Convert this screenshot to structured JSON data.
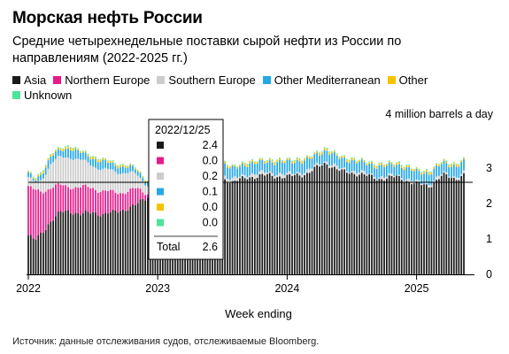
{
  "header": {
    "title": "Морская нефть России",
    "subtitle": "Средние четырехнедельные поставки сырой нефти из России по направлениям (2022-2025 гг.)"
  },
  "footer": {
    "source": "Источник: данные отслеживания судов, отслеживаемые Bloomberg."
  },
  "colors": {
    "Asia": "#1a1a1a",
    "Northern Europe": "#e8198b",
    "Southern Europe": "#cccccc",
    "Other Mediterranean": "#25a7e8",
    "Other": "#f5c400",
    "Unknown": "#4ee39a"
  },
  "tooltip": {
    "date": "2022/12/25",
    "rows": [
      {
        "series": "Asia",
        "value": "2.4"
      },
      {
        "series": "Northern Europe",
        "value": "0.0"
      },
      {
        "series": "Southern Europe",
        "value": "0.2"
      },
      {
        "series": "Other Mediterranean",
        "value": "0.1"
      },
      {
        "series": "Other",
        "value": "0.0"
      },
      {
        "series": "Unknown",
        "value": "0.0"
      }
    ],
    "total_label": "Total",
    "total_value": "2.6"
  },
  "chart_data": {
    "type": "bar",
    "stacked": true,
    "title": "Морская нефть России",
    "xlabel": "Week ending",
    "ylabel": "4 million barrels a day",
    "ylim": [
      0,
      4
    ],
    "yticks": [
      0,
      1,
      2,
      3
    ],
    "xticks": [
      "2022",
      "2023",
      "2024",
      "2025"
    ],
    "xlim": [
      2022.0,
      2025.42
    ],
    "grid": false,
    "legend_position": "top-left",
    "series_names": [
      "Asia",
      "Northern Europe",
      "Southern Europe",
      "Other Mediterranean",
      "Other",
      "Unknown"
    ],
    "anchors": [
      {
        "t": 2022.0,
        "v": [
          1.1,
          1.35,
          0.25,
          0.12,
          0.04,
          0.02
        ]
      },
      {
        "t": 2022.05,
        "v": [
          0.95,
          1.4,
          0.2,
          0.1,
          0.04,
          0.02
        ]
      },
      {
        "t": 2022.1,
        "v": [
          1.15,
          1.2,
          0.35,
          0.15,
          0.05,
          0.02
        ]
      },
      {
        "t": 2022.17,
        "v": [
          1.5,
          0.95,
          0.65,
          0.2,
          0.05,
          0.02
        ]
      },
      {
        "t": 2022.25,
        "v": [
          1.75,
          0.75,
          0.8,
          0.2,
          0.05,
          0.02
        ]
      },
      {
        "t": 2022.32,
        "v": [
          1.8,
          0.7,
          0.85,
          0.25,
          0.05,
          0.03
        ]
      },
      {
        "t": 2022.4,
        "v": [
          1.7,
          0.75,
          0.75,
          0.22,
          0.04,
          0.02
        ]
      },
      {
        "t": 2022.5,
        "v": [
          1.75,
          0.7,
          0.65,
          0.2,
          0.05,
          0.02
        ]
      },
      {
        "t": 2022.58,
        "v": [
          1.7,
          0.65,
          0.6,
          0.22,
          0.05,
          0.02
        ]
      },
      {
        "t": 2022.66,
        "v": [
          1.75,
          0.55,
          0.6,
          0.2,
          0.05,
          0.02
        ]
      },
      {
        "t": 2022.75,
        "v": [
          1.85,
          0.5,
          0.55,
          0.15,
          0.04,
          0.02
        ]
      },
      {
        "t": 2022.83,
        "v": [
          1.95,
          0.45,
          0.4,
          0.15,
          0.04,
          0.02
        ]
      },
      {
        "t": 2022.92,
        "v": [
          2.2,
          0.1,
          0.25,
          0.1,
          0.02,
          0.01
        ]
      },
      {
        "t": 2022.98,
        "v": [
          2.4,
          0.0,
          0.2,
          0.1,
          0.0,
          0.0
        ]
      },
      {
        "t": 2023.05,
        "v": [
          2.7,
          0.0,
          0.2,
          0.15,
          0.02,
          0.01
        ]
      },
      {
        "t": 2023.15,
        "v": [
          2.9,
          0.0,
          0.15,
          0.25,
          0.03,
          0.01
        ]
      },
      {
        "t": 2023.3,
        "v": [
          2.95,
          0.0,
          0.1,
          0.3,
          0.05,
          0.02
        ]
      },
      {
        "t": 2023.45,
        "v": [
          2.8,
          0.0,
          0.1,
          0.35,
          0.05,
          0.02
        ]
      },
      {
        "t": 2023.58,
        "v": [
          2.6,
          0.0,
          0.08,
          0.3,
          0.04,
          0.02
        ]
      },
      {
        "t": 2023.7,
        "v": [
          2.75,
          0.0,
          0.08,
          0.3,
          0.05,
          0.02
        ]
      },
      {
        "t": 2023.85,
        "v": [
          2.8,
          0.0,
          0.08,
          0.3,
          0.05,
          0.02
        ]
      },
      {
        "t": 2024.0,
        "v": [
          2.75,
          0.0,
          0.07,
          0.35,
          0.05,
          0.02
        ]
      },
      {
        "t": 2024.15,
        "v": [
          2.85,
          0.0,
          0.07,
          0.3,
          0.05,
          0.02
        ]
      },
      {
        "t": 2024.3,
        "v": [
          3.15,
          0.0,
          0.06,
          0.3,
          0.05,
          0.02
        ]
      },
      {
        "t": 2024.42,
        "v": [
          2.9,
          0.0,
          0.06,
          0.3,
          0.05,
          0.02
        ]
      },
      {
        "t": 2024.55,
        "v": [
          2.85,
          0.0,
          0.06,
          0.28,
          0.04,
          0.02
        ]
      },
      {
        "t": 2024.7,
        "v": [
          2.7,
          0.0,
          0.05,
          0.3,
          0.05,
          0.02
        ]
      },
      {
        "t": 2024.85,
        "v": [
          2.75,
          0.0,
          0.05,
          0.3,
          0.05,
          0.02
        ]
      },
      {
        "t": 2025.0,
        "v": [
          2.55,
          0.0,
          0.05,
          0.3,
          0.05,
          0.02
        ]
      },
      {
        "t": 2025.1,
        "v": [
          2.5,
          0.0,
          0.05,
          0.3,
          0.05,
          0.02
        ]
      },
      {
        "t": 2025.2,
        "v": [
          2.8,
          0.0,
          0.05,
          0.3,
          0.05,
          0.02
        ]
      },
      {
        "t": 2025.3,
        "v": [
          2.7,
          0.0,
          0.05,
          0.3,
          0.05,
          0.02
        ]
      },
      {
        "t": 2025.38,
        "v": [
          2.85,
          0.0,
          0.05,
          0.3,
          0.05,
          0.02
        ]
      }
    ]
  }
}
